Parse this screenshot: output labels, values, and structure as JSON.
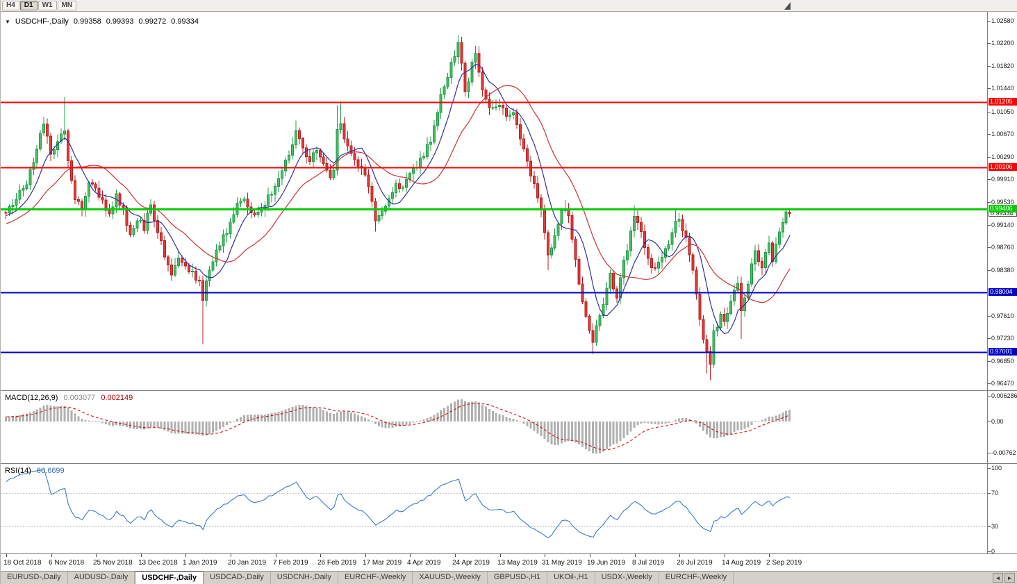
{
  "icons": {
    "collapse": "▼"
  },
  "toolbar": {
    "timeframes": [
      {
        "label": "H4",
        "active": false
      },
      {
        "label": "D1",
        "active": true
      },
      {
        "label": "W1",
        "active": false
      },
      {
        "label": "MN",
        "active": false
      }
    ]
  },
  "chart_header": {
    "symbol": "USDCHF-,Daily",
    "open": "0.99358",
    "high": "0.99393",
    "low": "0.99272",
    "close": "0.99334"
  },
  "price_scale": {
    "ticks": [
      "1.02580",
      "1.02200",
      "1.01820",
      "1.01440",
      "1.01050",
      "1.00670",
      "1.00290",
      "0.99910",
      "0.99530",
      "0.99140",
      "0.98760",
      "0.98380",
      "0.97610",
      "0.97230",
      "0.96850",
      "0.96470"
    ]
  },
  "levels": [
    {
      "price": 1.01205,
      "label": "1.01205",
      "color": "#ff0000",
      "width": 2
    },
    {
      "price": 1.00106,
      "label": "1.00106",
      "color": "#ff0000",
      "width": 2
    },
    {
      "price": 0.99406,
      "label": "0.99406",
      "color": "#00cc00",
      "width": 3
    },
    {
      "price": 0.98004,
      "label": "0.98004",
      "color": "#0000cc",
      "width": 2
    },
    {
      "price": 0.97001,
      "label": "0.97001",
      "color": "#0000cc",
      "width": 2
    }
  ],
  "current_price": {
    "value": 0.99334,
    "label": "0.99334"
  },
  "macd": {
    "label": "MACD(12,26,9)",
    "value1": "0.003077",
    "value2": "0.002149",
    "scale": [
      "0.006286",
      "0.00",
      "-0.00762"
    ]
  },
  "rsi": {
    "label": "RSI(14)",
    "value": "60.6699",
    "scale": [
      "100",
      "70",
      "30",
      "0"
    ],
    "levels": [
      70,
      30
    ]
  },
  "x_axis": {
    "dates": [
      "18 Oct 2018",
      "6 Nov 2018",
      "25 Nov 2018",
      "13 Dec 2018",
      "1 Jan 2019",
      "20 Jan 2019",
      "7 Feb 2019",
      "26 Feb 2019",
      "17 Mar 2019",
      "4 Apr 2019",
      "24 Apr 2019",
      "13 May 2019",
      "31 May 2019",
      "19 Jun 2019",
      "8 Jul 2019",
      "26 Jul 2019",
      "14 Aug 2019",
      "2 Sep 2019"
    ]
  },
  "tabs": {
    "items": [
      "EURUSD-,Daily",
      "AUDUSD-,Daily",
      "USDCHF-,Daily",
      "USDCAD-,Daily",
      "USDCNH-,Daily",
      "EURCHF-,Weekly",
      "XAUUSD-,Weekly",
      "GBPUSD-,H1",
      "UKOil-,H1",
      "USDX-,Weekly",
      "EURCHF-,Weekly"
    ],
    "active_index": 2,
    "scroll_left": "◄",
    "scroll_right": "►"
  },
  "chart_data": {
    "type": "candlestick",
    "symbol": "USDCHF",
    "timeframe": "Daily",
    "count": 228,
    "scale_high": 1.0258,
    "scale_low": 0.9647,
    "last_candle": {
      "open": 0.99358,
      "high": 0.99393,
      "low": 0.99272,
      "close": 0.99334
    },
    "close_anchors": [
      [
        0,
        0.993
      ],
      [
        3,
        0.9958
      ],
      [
        6,
        0.9985
      ],
      [
        9,
        1.0045
      ],
      [
        11,
        1.0082
      ],
      [
        13,
        1.0035
      ],
      [
        15,
        1.0058
      ],
      [
        17,
        1.0075
      ],
      [
        18,
        1.0025
      ],
      [
        20,
        0.996
      ],
      [
        22,
        0.9945
      ],
      [
        24,
        0.999
      ],
      [
        26,
        0.998
      ],
      [
        28,
        0.995
      ],
      [
        30,
        0.9928
      ],
      [
        32,
        0.9962
      ],
      [
        34,
        0.994
      ],
      [
        36,
        0.99
      ],
      [
        38,
        0.9924
      ],
      [
        40,
        0.9908
      ],
      [
        42,
        0.9952
      ],
      [
        44,
        0.99
      ],
      [
        46,
        0.9866
      ],
      [
        48,
        0.9836
      ],
      [
        50,
        0.9856
      ],
      [
        52,
        0.9846
      ],
      [
        54,
        0.9834
      ],
      [
        56,
        0.9818
      ],
      [
        57,
        0.9788
      ],
      [
        58,
        0.9815
      ],
      [
        60,
        0.9855
      ],
      [
        62,
        0.9885
      ],
      [
        64,
        0.9905
      ],
      [
        66,
        0.9935
      ],
      [
        68,
        0.9955
      ],
      [
        70,
        0.9948
      ],
      [
        72,
        0.9925
      ],
      [
        74,
        0.9945
      ],
      [
        76,
        0.9958
      ],
      [
        78,
        0.9972
      ],
      [
        80,
        1.0002
      ],
      [
        82,
        1.0038
      ],
      [
        84,
        1.0068
      ],
      [
        86,
        1.0042
      ],
      [
        88,
        1.0018
      ],
      [
        90,
        1.004
      ],
      [
        92,
        1.0012
      ],
      [
        94,
        0.9992
      ],
      [
        95,
        1.0008
      ],
      [
        96,
        1.0078
      ],
      [
        97,
        1.0088
      ],
      [
        98,
        1.0056
      ],
      [
        100,
        1.0028
      ],
      [
        102,
        1.0016
      ],
      [
        104,
        1.0
      ],
      [
        106,
        0.9948
      ],
      [
        107,
        0.9918
      ],
      [
        109,
        0.9936
      ],
      [
        111,
        0.9962
      ],
      [
        113,
        0.9985
      ],
      [
        115,
        0.9974
      ],
      [
        117,
        1.0
      ],
      [
        119,
        1.0012
      ],
      [
        121,
        1.0032
      ],
      [
        123,
        1.006
      ],
      [
        125,
        1.0105
      ],
      [
        127,
        1.015
      ],
      [
        129,
        1.0185
      ],
      [
        131,
        1.0215
      ],
      [
        132,
        1.0192
      ],
      [
        133,
        1.0145
      ],
      [
        134,
        1.016
      ],
      [
        135,
        1.0185
      ],
      [
        136,
        1.0196
      ],
      [
        137,
        1.0166
      ],
      [
        139,
        1.013
      ],
      [
        141,
        1.0106
      ],
      [
        143,
        1.012
      ],
      [
        145,
        1.009
      ],
      [
        147,
        1.0104
      ],
      [
        149,
        1.006
      ],
      [
        151,
        1.002
      ],
      [
        153,
        0.9986
      ],
      [
        155,
        0.994
      ],
      [
        156,
        0.99
      ],
      [
        157,
        0.986
      ],
      [
        158,
        0.988
      ],
      [
        160,
        0.992
      ],
      [
        162,
        0.9946
      ],
      [
        163,
        0.993
      ],
      [
        164,
        0.9896
      ],
      [
        166,
        0.982
      ],
      [
        168,
        0.9762
      ],
      [
        169,
        0.974
      ],
      [
        170,
        0.9722
      ],
      [
        172,
        0.9766
      ],
      [
        174,
        0.9803
      ],
      [
        175,
        0.983
      ],
      [
        177,
        0.9794
      ],
      [
        179,
        0.985
      ],
      [
        181,
        0.99
      ],
      [
        182,
        0.9926
      ],
      [
        184,
        0.9896
      ],
      [
        186,
        0.986
      ],
      [
        188,
        0.9836
      ],
      [
        190,
        0.986
      ],
      [
        192,
        0.9886
      ],
      [
        194,
        0.9924
      ],
      [
        195,
        0.9928
      ],
      [
        197,
        0.989
      ],
      [
        199,
        0.9836
      ],
      [
        201,
        0.975
      ],
      [
        203,
        0.97
      ],
      [
        204,
        0.9684
      ],
      [
        205,
        0.973
      ],
      [
        207,
        0.976
      ],
      [
        208,
        0.9746
      ],
      [
        210,
        0.978
      ],
      [
        212,
        0.9816
      ],
      [
        213,
        0.9764
      ],
      [
        215,
        0.982
      ],
      [
        217,
        0.987
      ],
      [
        219,
        0.9846
      ],
      [
        221,
        0.988
      ],
      [
        222,
        0.9858
      ],
      [
        224,
        0.9906
      ],
      [
        226,
        0.993
      ],
      [
        227,
        0.99334
      ]
    ],
    "wick_overrides": {
      "11": {
        "high": 1.0096
      },
      "17": {
        "high": 1.0129
      },
      "57": {
        "low": 0.9713
      },
      "84": {
        "high": 1.009
      },
      "96": {
        "high": 1.0116
      },
      "97": {
        "high": 1.0122
      },
      "107": {
        "low": 0.9903
      },
      "131": {
        "high": 1.0234
      },
      "136": {
        "high": 1.0216
      },
      "157": {
        "low": 0.9838
      },
      "162": {
        "high": 0.9956
      },
      "170": {
        "low": 0.9696
      },
      "182": {
        "high": 0.9947
      },
      "194": {
        "high": 0.994
      },
      "203": {
        "low": 0.9664
      },
      "204": {
        "low": 0.9652
      },
      "213": {
        "low": 0.9722
      }
    },
    "ma_fast_period": 8,
    "ma_slow_period": 21,
    "ma_fast_color": "#2f2f9e",
    "ma_slow_color": "#c83232",
    "bull_fill": "#4fbb68",
    "bull_stroke": "#1e9c44",
    "bear_fill": "#e23a3a",
    "bear_stroke": "#bb1f1f",
    "macd_color": "#b0b0b0",
    "macd_signal_color": "#cc0000",
    "rsi_color": "#3c78c8"
  }
}
